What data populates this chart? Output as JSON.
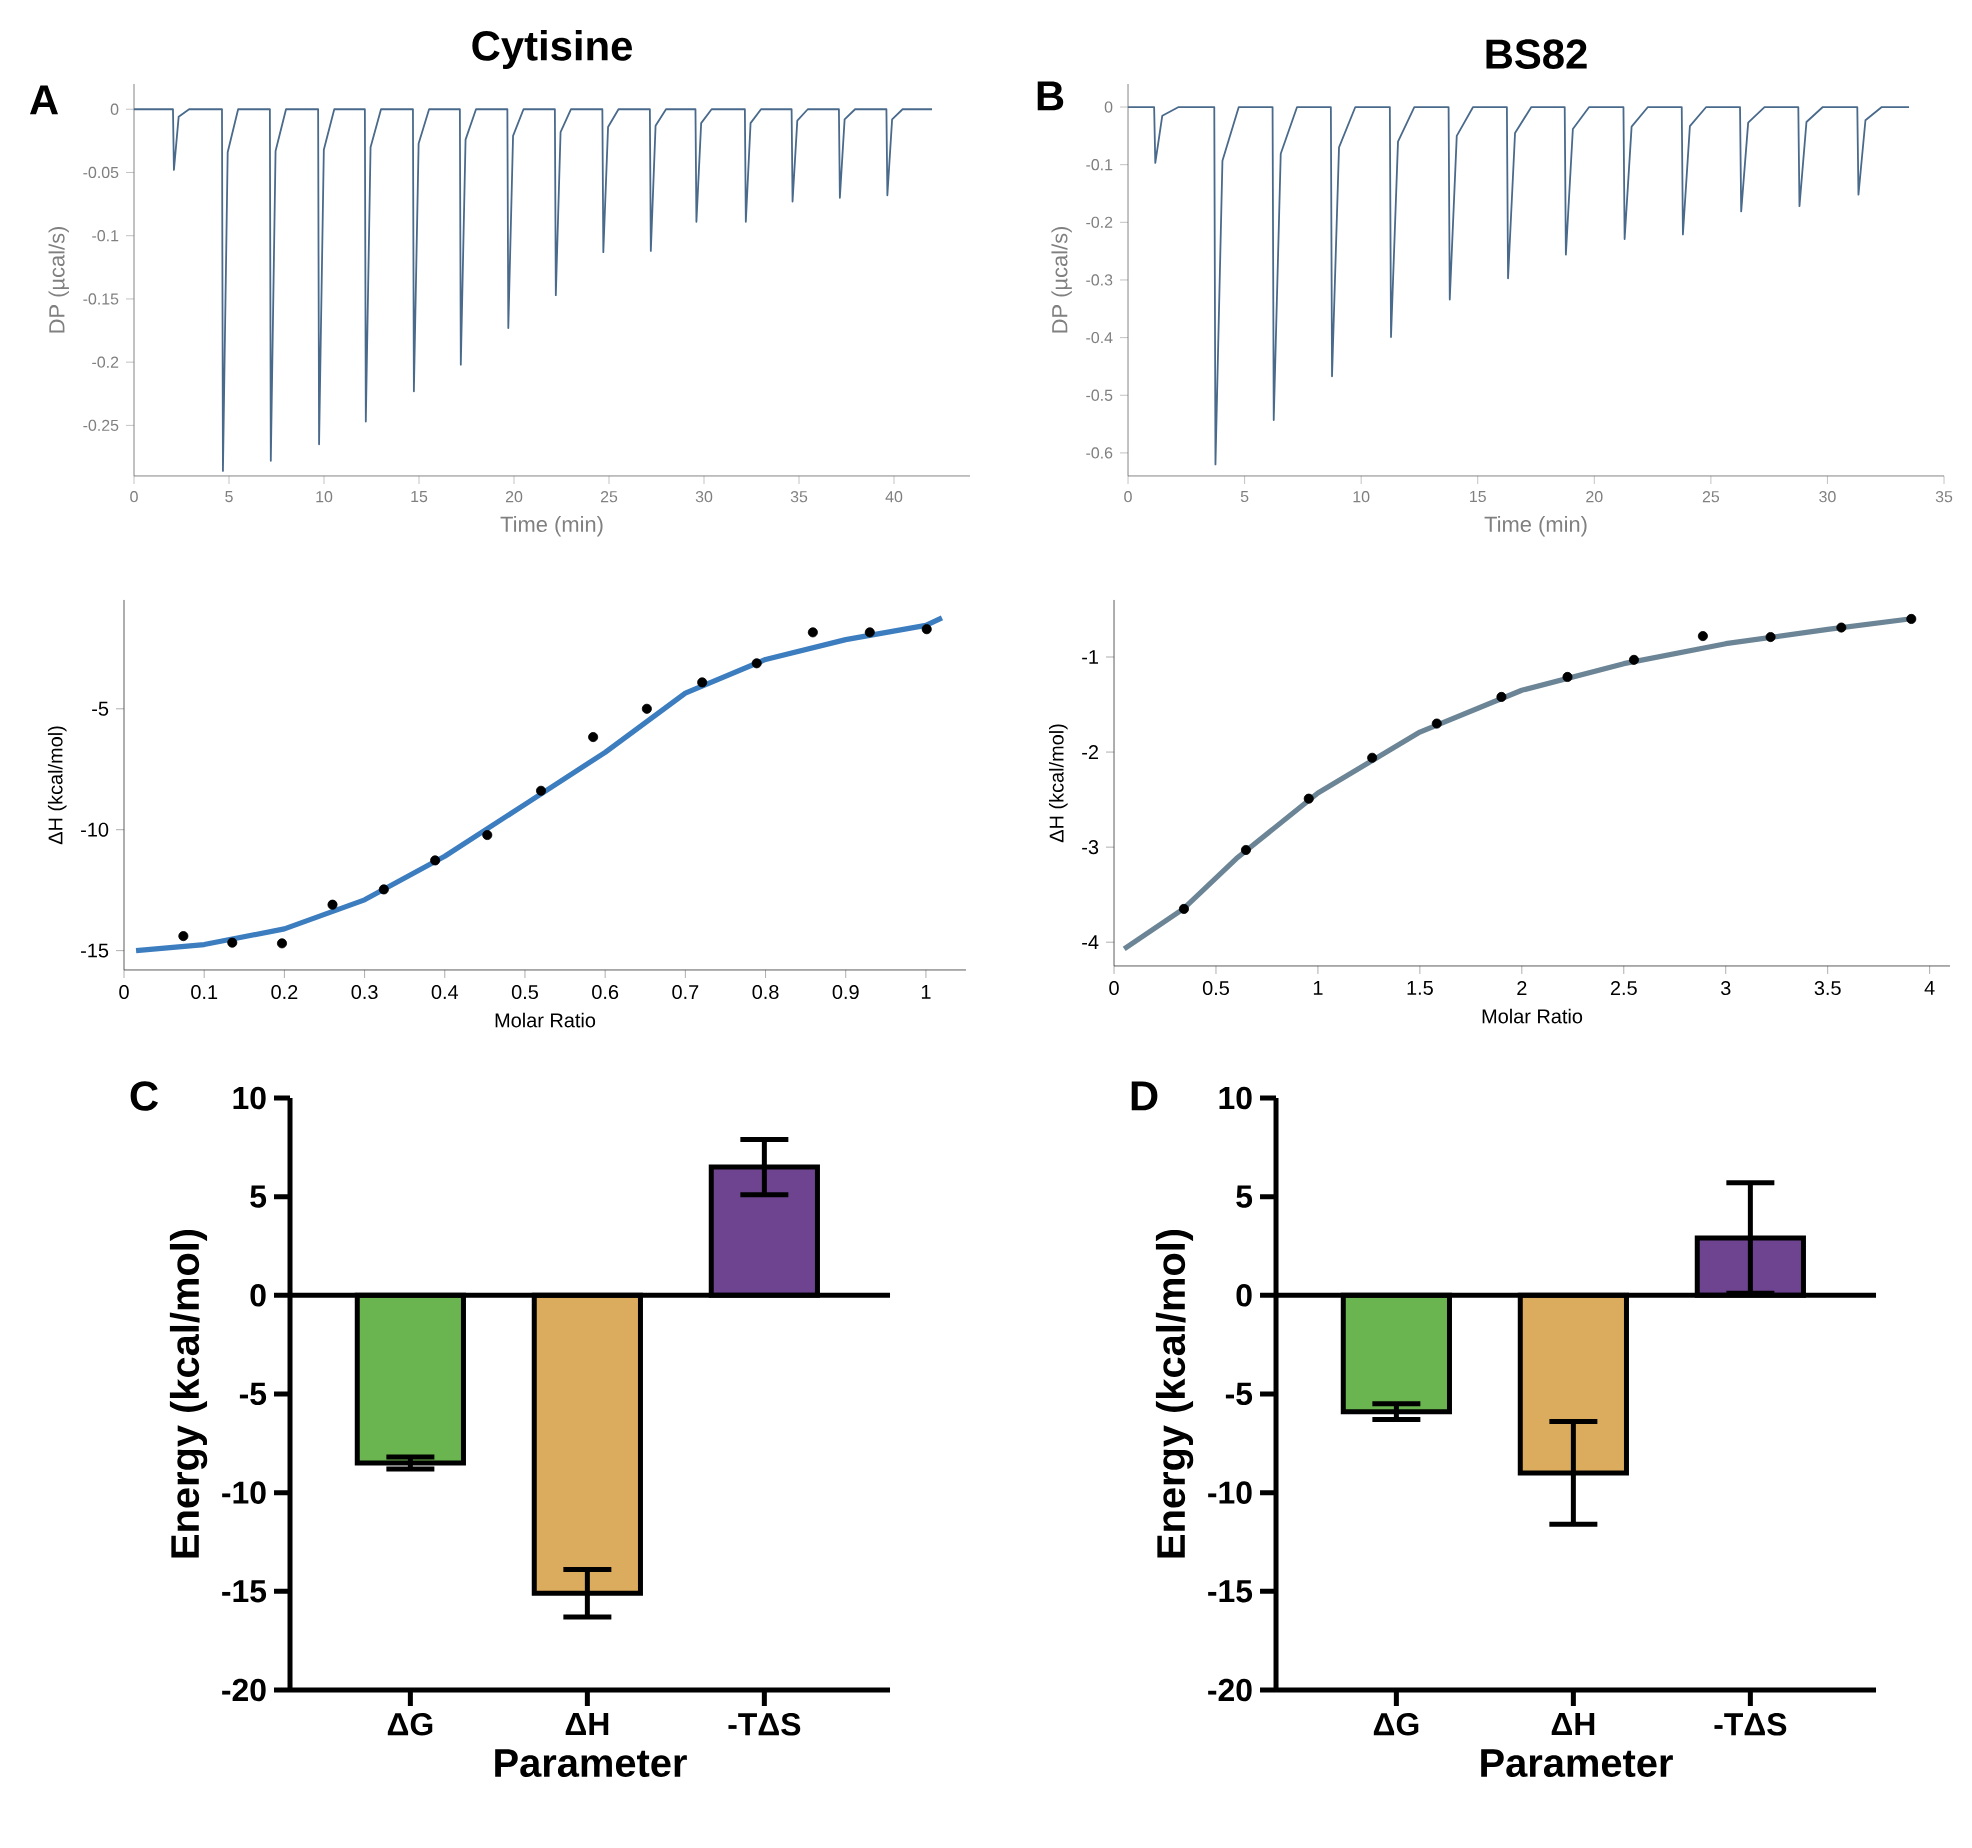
{
  "chart_data": [
    {
      "type": "line",
      "title": "Cytisine",
      "annotations": [
        "A"
      ],
      "xlabel": "Time (min)",
      "ylabel": "DP (µcal/s)",
      "color": "#4a6a8c",
      "xlim": [
        0,
        44
      ],
      "ylim": [
        -0.29,
        0.02
      ],
      "xticks": [
        0,
        5,
        10,
        15,
        20,
        25,
        30,
        35,
        40
      ],
      "yticks": [
        0,
        -0.05,
        -0.1,
        -0.15,
        -0.2,
        -0.25
      ],
      "x": [
        0,
        2.05,
        2.1,
        2.35,
        2.9,
        4.63,
        4.68,
        4.93,
        5.48,
        7.15,
        7.2,
        7.45,
        8.0,
        9.69,
        9.74,
        9.99,
        10.54,
        12.15,
        12.2,
        12.45,
        13.0,
        14.68,
        14.73,
        14.98,
        15.53,
        17.15,
        17.2,
        17.45,
        18.0,
        19.65,
        19.7,
        19.95,
        20.5,
        22.15,
        22.2,
        22.45,
        23.0,
        24.65,
        24.7,
        24.95,
        25.5,
        27.15,
        27.2,
        27.45,
        28.0,
        29.55,
        29.6,
        29.85,
        30.4,
        32.15,
        32.2,
        32.45,
        33.0,
        34.61,
        34.66,
        34.91,
        35.46,
        37.1,
        37.15,
        37.4,
        37.95,
        39.6,
        39.65,
        39.9,
        40.45,
        42
      ],
      "values": [
        0,
        0,
        -0.048,
        -0.006,
        0,
        0,
        -0.286,
        -0.034,
        0,
        0,
        -0.278,
        -0.033,
        0,
        0,
        -0.265,
        -0.032,
        0,
        0,
        -0.247,
        -0.03,
        0,
        0,
        -0.223,
        -0.027,
        0,
        0,
        -0.202,
        -0.024,
        0,
        0,
        -0.173,
        -0.021,
        0,
        0,
        -0.147,
        -0.018,
        0,
        0,
        -0.113,
        -0.014,
        0,
        0,
        -0.112,
        -0.013,
        0,
        0,
        -0.089,
        -0.011,
        0,
        0,
        -0.089,
        -0.011,
        0,
        0,
        -0.073,
        -0.009,
        0,
        0,
        -0.07,
        -0.008,
        0,
        0,
        -0.068,
        -0.008,
        0,
        0
      ]
    },
    {
      "type": "line",
      "title": "BS82",
      "annotations": [
        "B"
      ],
      "xlabel": "Time (min)",
      "ylabel": "DP (µcal/s)",
      "color": "#4a6a8c",
      "xlim": [
        0,
        35
      ],
      "ylim": [
        -0.64,
        0.04
      ],
      "xticks": [
        0,
        5,
        10,
        15,
        20,
        25,
        30,
        35
      ],
      "yticks": [
        0,
        -0.1,
        -0.2,
        -0.3,
        -0.4,
        -0.5,
        -0.6
      ],
      "x": [
        0,
        1.12,
        1.17,
        1.47,
        2.17,
        3.7,
        3.75,
        4.05,
        4.75,
        6.2,
        6.25,
        6.55,
        7.25,
        8.7,
        8.75,
        9.05,
        9.75,
        11.23,
        11.28,
        11.58,
        12.28,
        13.75,
        13.8,
        14.1,
        14.8,
        16.25,
        16.3,
        16.6,
        17.3,
        18.73,
        18.78,
        19.08,
        19.78,
        21.25,
        21.3,
        21.6,
        22.3,
        23.75,
        23.8,
        24.1,
        24.8,
        26.25,
        26.3,
        26.6,
        27.3,
        28.75,
        28.8,
        29.1,
        29.8,
        31.28,
        31.33,
        31.63,
        32.33,
        33.5
      ],
      "values": [
        0,
        0,
        -0.097,
        -0.015,
        0,
        0,
        -0.62,
        -0.093,
        0,
        0,
        -0.543,
        -0.081,
        0,
        0,
        -0.467,
        -0.07,
        0,
        0,
        -0.399,
        -0.06,
        0,
        0,
        -0.334,
        -0.05,
        0,
        0,
        -0.297,
        -0.045,
        0,
        0,
        -0.256,
        -0.038,
        0,
        0,
        -0.229,
        -0.034,
        0,
        0,
        -0.221,
        -0.033,
        0,
        0,
        -0.181,
        -0.027,
        0,
        0,
        -0.172,
        -0.026,
        0,
        0,
        -0.152,
        -0.023,
        0,
        0
      ]
    },
    {
      "type": "line",
      "xlabel": "Molar Ratio",
      "ylabel": "ΔH (kcal/mol)",
      "xlim": [
        0,
        1.05
      ],
      "ylim": [
        -15.8,
        -0.5
      ],
      "xticks": [
        0,
        0.1,
        0.2,
        0.3,
        0.4,
        0.5,
        0.6,
        0.7,
        0.8,
        0.9,
        1
      ],
      "yticks": [
        -5,
        -10,
        -15
      ],
      "series": [
        {
          "type": "line",
          "color": "#3c7dbf",
          "x": [
            0.015,
            0.1,
            0.2,
            0.3,
            0.4,
            0.5,
            0.6,
            0.7,
            0.8,
            0.9,
            1.0,
            1.02
          ],
          "values": [
            -15.0,
            -14.75,
            -14.1,
            -12.9,
            -11.1,
            -8.95,
            -6.8,
            -4.35,
            -2.96,
            -2.14,
            -1.55,
            -1.24
          ]
        },
        {
          "type": "scatter",
          "color": "#000000",
          "x": [
            0.074,
            0.135,
            0.197,
            0.26,
            0.324,
            0.388,
            0.453,
            0.52,
            0.585,
            0.652,
            0.721,
            0.789,
            0.859,
            0.93,
            1.001
          ],
          "values": [
            -14.4,
            -14.67,
            -14.7,
            -13.1,
            -12.47,
            -11.27,
            -10.22,
            -8.39,
            -6.17,
            -5.0,
            -3.91,
            -3.12,
            -1.84,
            -1.84,
            -1.71
          ]
        }
      ]
    },
    {
      "type": "line",
      "xlabel": "Molar Ratio",
      "ylabel": "ΔH (kcal/mol)",
      "xlim": [
        0,
        4.1
      ],
      "ylim": [
        -4.25,
        -0.4
      ],
      "xticks": [
        0,
        0.5,
        1,
        1.5,
        2,
        2.5,
        3,
        3.5,
        4
      ],
      "yticks": [
        -1,
        -2,
        -3,
        -4
      ],
      "series": [
        {
          "type": "line",
          "color": "#6c8596",
          "x": [
            0.05,
            0.34,
            0.6,
            1.0,
            1.5,
            2.0,
            2.5,
            3.0,
            3.5,
            3.9
          ],
          "values": [
            -4.07,
            -3.65,
            -3.12,
            -2.43,
            -1.79,
            -1.35,
            -1.07,
            -0.86,
            -0.71,
            -0.6
          ]
        },
        {
          "type": "scatter",
          "color": "#000000",
          "x": [
            0.343,
            0.647,
            0.955,
            1.266,
            1.583,
            1.9,
            2.224,
            2.55,
            2.888,
            3.22,
            3.567,
            3.91
          ],
          "values": [
            -3.65,
            -3.03,
            -2.49,
            -2.06,
            -1.7,
            -1.42,
            -1.21,
            -1.03,
            -0.78,
            -0.79,
            -0.69,
            -0.6
          ]
        }
      ]
    },
    {
      "type": "bar",
      "annotations": [
        "C"
      ],
      "xlabel": "Parameter",
      "ylabel": "Energy (kcal/mol)",
      "categories": [
        "ΔG",
        "ΔH",
        "-TΔS"
      ],
      "values": [
        -8.5,
        -15.1,
        6.5
      ],
      "errors": [
        0.3,
        1.2,
        1.4
      ],
      "colors": [
        "#6ab550",
        "#dcac5e",
        "#6e4490"
      ],
      "ylim": [
        -20,
        10
      ],
      "yticks": [
        -20,
        -15,
        -10,
        -5,
        0,
        5,
        10
      ],
      "ref_lines": [
        {
          "axis": "y",
          "value": 0
        }
      ]
    },
    {
      "type": "bar",
      "annotations": [
        "D"
      ],
      "xlabel": "Parameter",
      "ylabel": "Energy (kcal/mol)",
      "categories": [
        "ΔG",
        "ΔH",
        "-TΔS"
      ],
      "values": [
        -5.9,
        -9.0,
        2.9
      ],
      "errors": [
        0.4,
        2.6,
        2.8
      ],
      "colors": [
        "#6ab550",
        "#dcac5e",
        "#6e4490"
      ],
      "ylim": [
        -20,
        10
      ],
      "yticks": [
        -20,
        -15,
        -10,
        -5,
        0,
        5,
        10
      ],
      "ref_lines": [
        {
          "axis": "y",
          "value": 0
        }
      ]
    }
  ]
}
